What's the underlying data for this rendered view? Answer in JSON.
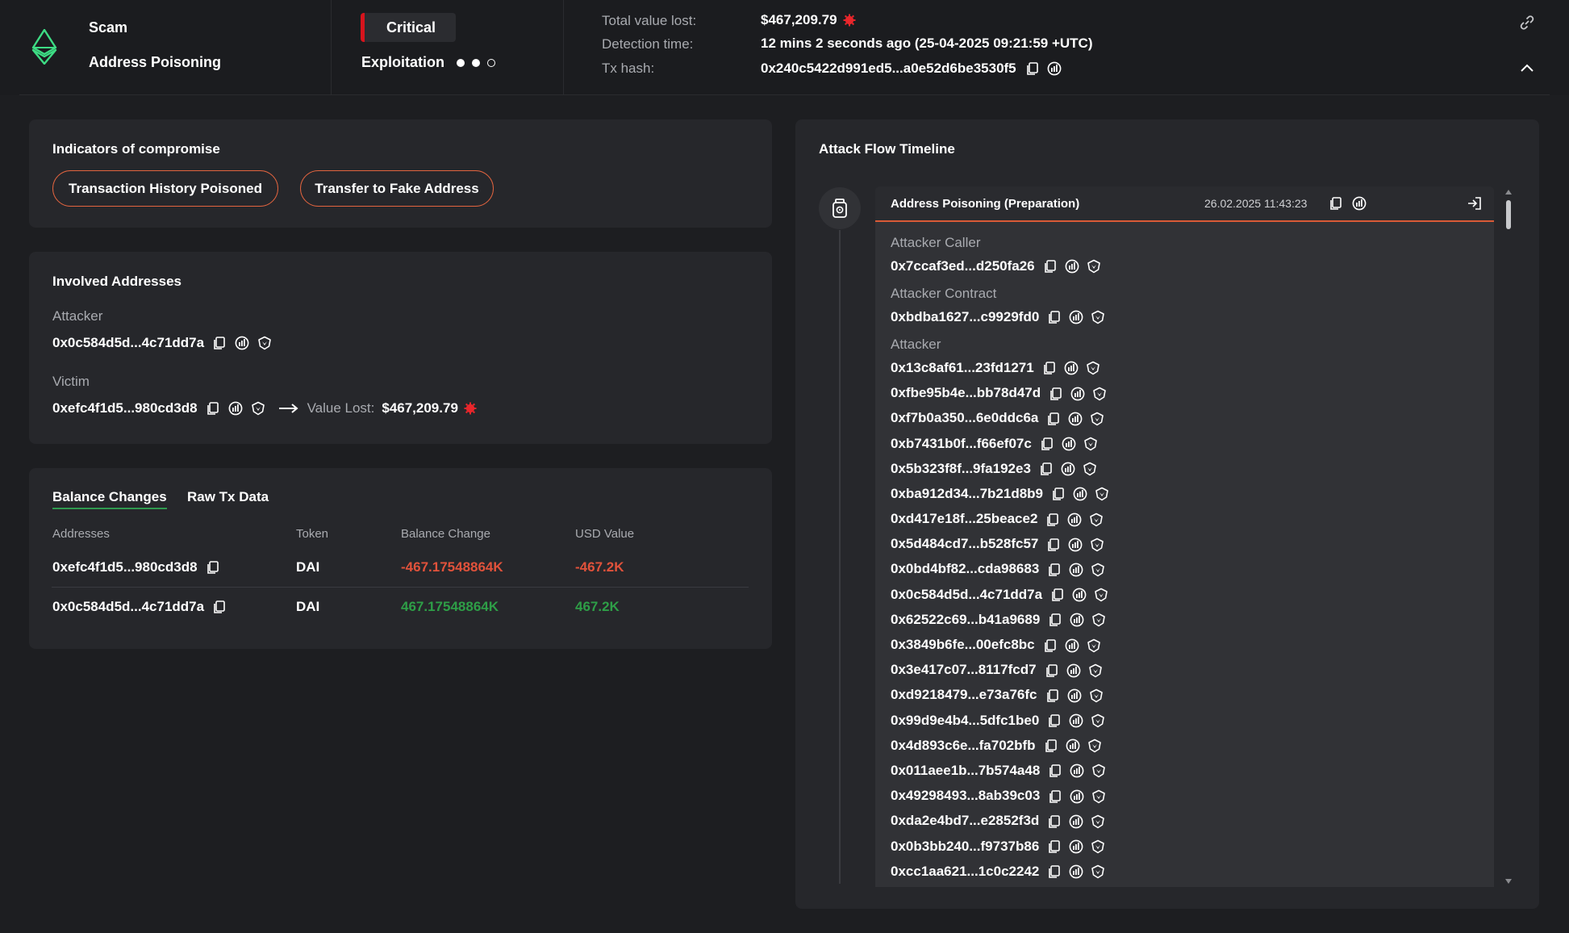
{
  "header": {
    "category": "Scam",
    "subcategory": "Address Poisoning",
    "severity": "Critical",
    "stage": "Exploitation",
    "stage_progress": "2 of 3",
    "total_value_lost_label": "Total value lost:",
    "total_value_lost": "$467,209.79",
    "detection_time_label": "Detection time:",
    "detection_time": "12 mins 2 seconds ago (25-04-2025 09:21:59 +UTC)",
    "tx_hash_label": "Tx hash:",
    "tx_hash": "0x240c5422d991ed5...a0e52d6be3530f5"
  },
  "colors": {
    "background": "#1d1e21",
    "panel": "#26272b",
    "critical": "#d7141d",
    "pill_border": "#e2643f",
    "negative": "#e1523b",
    "positive": "#2e9e47",
    "eth_green": "#3ddc84"
  },
  "icons": {
    "chain": "ethereum-icon",
    "copy": "copy-icon",
    "explorer": "explorer-icon",
    "shield": "shield-icon",
    "alert": "alert-icon",
    "link": "link-icon",
    "collapse": "chevron-up-icon",
    "export": "export-icon",
    "event": "vault-icon"
  },
  "ioc": {
    "title": "Indicators of compromise",
    "tags": [
      "Transaction History Poisoned",
      "Transfer to Fake Address"
    ]
  },
  "involved": {
    "title": "Involved Addresses",
    "attacker_label": "Attacker",
    "attacker": "0x0c584d5d...4c71dd7a",
    "victim_label": "Victim",
    "victim": "0xefc4f1d5...980cd3d8",
    "value_lost_label": "Value Lost:",
    "value_lost": "$467,209.79"
  },
  "balance": {
    "tabs": [
      "Balance Changes",
      "Raw Tx Data"
    ],
    "columns": [
      "Addresses",
      "Token",
      "Balance Change",
      "USD Value"
    ],
    "rows": [
      {
        "address": "0xefc4f1d5...980cd3d8",
        "token": "DAI",
        "change": "-467.17548864K",
        "usd": "-467.2K"
      },
      {
        "address": "0x0c584d5d...4c71dd7a",
        "token": "DAI",
        "change": "467.17548864K",
        "usd": "467.2K"
      }
    ]
  },
  "timeline": {
    "title": "Attack Flow Timeline",
    "event_title": "Address Poisoning  (Preparation)",
    "event_date": "26.02.2025 11:43:23",
    "caller_label": "Attacker Caller",
    "caller": "0x7ccaf3ed...d250fa26",
    "contract_label": "Attacker Contract",
    "contract": "0xbdba1627...c9929fd0",
    "attacker_label": "Attacker",
    "attackers": [
      "0x13c8af61...23fd1271",
      "0xfbe95b4e...bb78d47d",
      "0xf7b0a350...6e0ddc6a",
      "0xb7431b0f...f66ef07c",
      "0x5b323f8f...9fa192e3",
      "0xba912d34...7b21d8b9",
      "0xd417e18f...25beace2",
      "0x5d484cd7...b528fc57",
      "0x0bd4bf82...cda98683",
      "0x0c584d5d...4c71dd7a",
      "0x62522c69...b41a9689",
      "0x3849b6fe...00efc8bc",
      "0x3e417c07...8117fcd7",
      "0xd9218479...e73a76fc",
      "0x99d9e4b4...5dfc1be0",
      "0x4d893c6e...fa702bfb",
      "0x011aee1b...7b574a48",
      "0x49298493...8ab39c03",
      "0xda2e4bd7...e2852f3d",
      "0x0b3bb240...f9737b86",
      "0xcc1aa621...1c0c2242"
    ]
  }
}
